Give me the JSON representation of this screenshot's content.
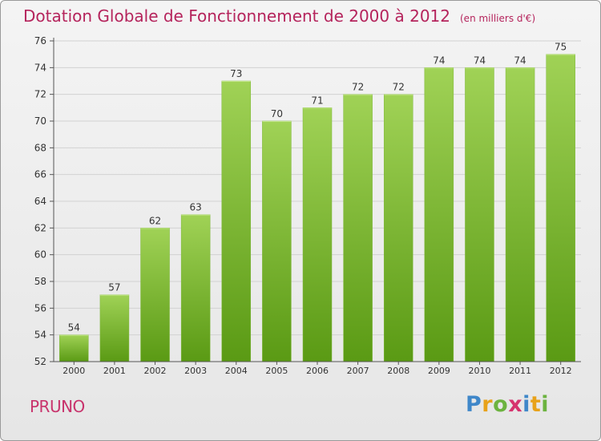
{
  "header": {
    "title": "Dotation Globale de Fonctionnement de 2000 à 2012",
    "subtitle": "(en milliers d'€)"
  },
  "footer": {
    "commune": "PRUNO",
    "brand": "Proxiti"
  },
  "colors": {
    "bar_top": "#a0d256",
    "bar_bottom": "#5a9a14",
    "title": "#b5245c",
    "commune": "#c8336c"
  },
  "logo_letters": [
    {
      "ch": "P",
      "color": "#3f87c9"
    },
    {
      "ch": "r",
      "color": "#e8a21a"
    },
    {
      "ch": "o",
      "color": "#6cb33f"
    },
    {
      "ch": "x",
      "color": "#d6336e"
    },
    {
      "ch": "i",
      "color": "#3f87c9"
    },
    {
      "ch": "t",
      "color": "#e8a21a"
    },
    {
      "ch": "i",
      "color": "#6cb33f"
    }
  ],
  "chart_data": {
    "type": "bar",
    "categories": [
      "2000",
      "2001",
      "2002",
      "2003",
      "2004",
      "2005",
      "2006",
      "2007",
      "2008",
      "2009",
      "2010",
      "2011",
      "2012"
    ],
    "values": [
      54,
      57,
      62,
      63,
      73,
      70,
      71,
      72,
      72,
      74,
      74,
      74,
      75
    ],
    "ylim": [
      52,
      76
    ],
    "yticks": [
      52,
      54,
      56,
      58,
      60,
      62,
      64,
      66,
      68,
      70,
      72,
      74,
      76
    ],
    "title": "Dotation Globale de Fonctionnement de 2000 à 2012",
    "subtitle": "(en milliers d'€)",
    "xlabel": "",
    "ylabel": "",
    "grid": true
  }
}
